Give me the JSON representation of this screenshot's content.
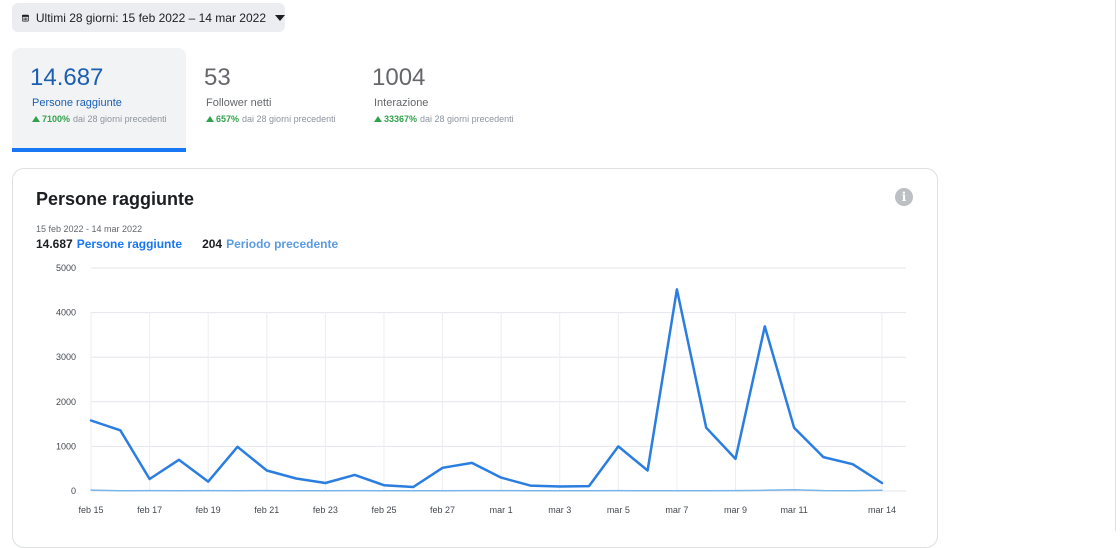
{
  "date_filter": {
    "icon": "calendar-icon",
    "label": "Ultimi 28 giorni: 15 feb 2022 – 14 mar 2022"
  },
  "metrics": [
    {
      "value": "14.687",
      "label": "Persone raggiunte",
      "change": "7100%",
      "compare": "dai 28 giorni precedenti",
      "active": true
    },
    {
      "value": "53",
      "label": "Follower netti",
      "change": "657%",
      "compare": "dai 28 giorni precedenti",
      "active": false
    },
    {
      "value": "1004",
      "label": "Interazione",
      "change": "33367%",
      "compare": "dai 28 giorni precedenti",
      "active": false
    }
  ],
  "card": {
    "title": "Persone raggiunte",
    "info_icon": "i",
    "date_range": "15 feb 2022 - 14 mar 2022",
    "legend": {
      "current_value": "14.687",
      "current_label": "Persone raggiunte",
      "previous_value": "204",
      "previous_label": "Periodo precedente"
    }
  },
  "colors": {
    "accent": "#1877f2",
    "current_series": "#2a7de1",
    "previous_series": "#79b4ea",
    "positive": "#31a24c"
  },
  "chart_data": {
    "type": "line",
    "x": [
      "feb 15",
      "feb 16",
      "feb 17",
      "feb 18",
      "feb 19",
      "feb 20",
      "feb 21",
      "feb 22",
      "feb 23",
      "feb 24",
      "feb 25",
      "feb 26",
      "feb 27",
      "feb 28",
      "mar 1",
      "mar 2",
      "mar 3",
      "mar 4",
      "mar 5",
      "mar 6",
      "mar 7",
      "mar 8",
      "mar 9",
      "mar 10",
      "mar 11",
      "mar 12",
      "mar 13",
      "mar 14"
    ],
    "x_tick_labels": [
      "feb 15",
      "feb 17",
      "feb 19",
      "feb 21",
      "feb 23",
      "feb 25",
      "feb 27",
      "mar 1",
      "mar 3",
      "mar 5",
      "mar 7",
      "mar 9",
      "mar 11",
      "mar 14"
    ],
    "x_tick_indices": [
      0,
      2,
      4,
      6,
      8,
      10,
      12,
      14,
      16,
      18,
      20,
      22,
      24,
      27
    ],
    "series": [
      {
        "name": "Persone raggiunte",
        "values": [
          1580,
          1360,
          270,
          700,
          210,
          990,
          460,
          280,
          180,
          360,
          130,
          90,
          520,
          630,
          300,
          120,
          100,
          110,
          1000,
          460,
          4520,
          1420,
          720,
          3690,
          1420,
          760,
          600,
          180
        ]
      },
      {
        "name": "Periodo precedente",
        "values": [
          20,
          5,
          8,
          5,
          10,
          5,
          8,
          5,
          5,
          10,
          5,
          5,
          5,
          8,
          10,
          5,
          5,
          5,
          8,
          5,
          5,
          5,
          10,
          15,
          30,
          10,
          5,
          15
        ]
      }
    ],
    "ylim": [
      0,
      5000
    ],
    "y_ticks": [
      0,
      1000,
      2000,
      3000,
      4000,
      5000
    ],
    "grid": true
  }
}
